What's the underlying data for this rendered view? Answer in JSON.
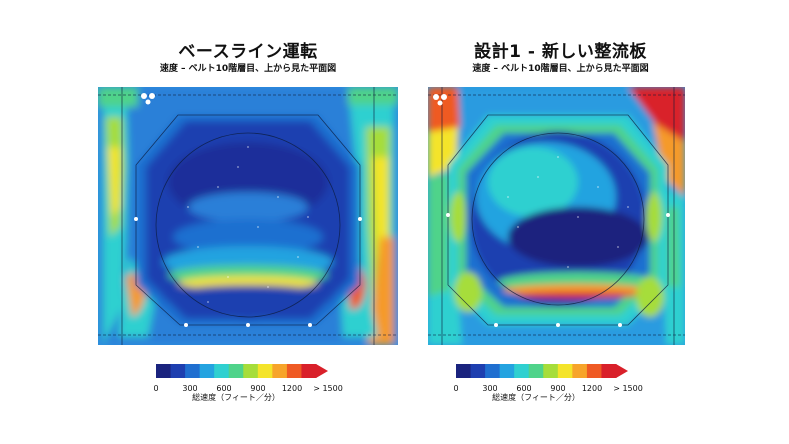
{
  "panels": [
    {
      "title": "ベースライン運転",
      "subtitle": "速度 – ベルト10階層目、上から見た平面図",
      "scale_label": "総速度（フィート／分）"
    },
    {
      "title": "設計1 - 新しい整流板",
      "subtitle": "速度 – ベルト10階層目、上から見た平面図",
      "scale_label": "総速度（フィート／分）"
    }
  ],
  "colorbar": {
    "ticks": [
      "0",
      "300",
      "600",
      "900",
      "1200",
      "> 1500"
    ],
    "colors": [
      "#1a237e",
      "#1e3fb0",
      "#1f6fd0",
      "#24a3e0",
      "#2fd0d0",
      "#4fd38a",
      "#a6dd3a",
      "#f4e42a",
      "#f7a42a",
      "#ef5a24",
      "#d9202a"
    ]
  },
  "colors": {
    "dark_blue": "#1c3aa5",
    "mid_blue": "#1f6fd0",
    "cyan": "#2cc3e6",
    "green": "#58d06a",
    "yellow": "#f2e23a",
    "orange": "#f59a2a",
    "red": "#d9202a"
  }
}
